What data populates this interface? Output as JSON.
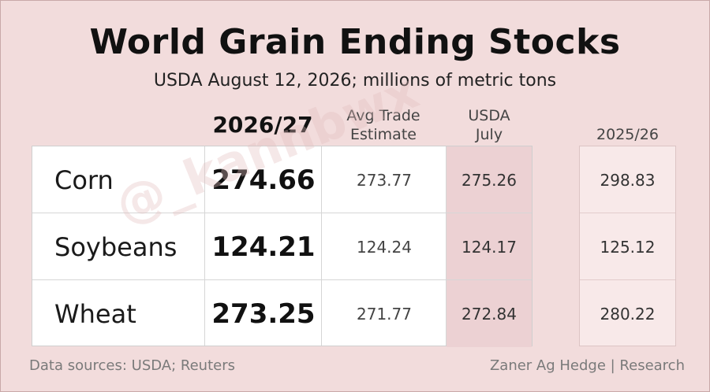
{
  "title": "World Grain Ending Stocks",
  "subtitle": "USDA August 12, 2026; millions of metric tons",
  "chart_data": {
    "type": "table",
    "columns": [
      "2026/27",
      "Avg Trade Estimate",
      "USDA July",
      "2025/26"
    ],
    "column_header_lines": {
      "current": [
        "2026/27"
      ],
      "avg": [
        "Avg Trade",
        "Estimate"
      ],
      "july": [
        "USDA",
        "July"
      ],
      "prev": [
        "2025/26"
      ]
    },
    "rows": [
      {
        "name": "Corn",
        "current": "274.66",
        "avg": "273.77",
        "july": "275.26",
        "prev": "298.83"
      },
      {
        "name": "Soybeans",
        "current": "124.21",
        "avg": "124.24",
        "july": "124.17",
        "prev": "125.12"
      },
      {
        "name": "Wheat",
        "current": "273.25",
        "avg": "271.77",
        "july": "272.84",
        "prev": "280.22"
      }
    ]
  },
  "footer": {
    "left": "Data sources: USDA; Reuters",
    "right": "Zaner Ag Hedge | Research"
  },
  "watermark": "@_kannbwx",
  "colors": {
    "background": "#f2dcdc",
    "july_column": "#ecd1d3",
    "prev_column": "#f8e9e9"
  }
}
